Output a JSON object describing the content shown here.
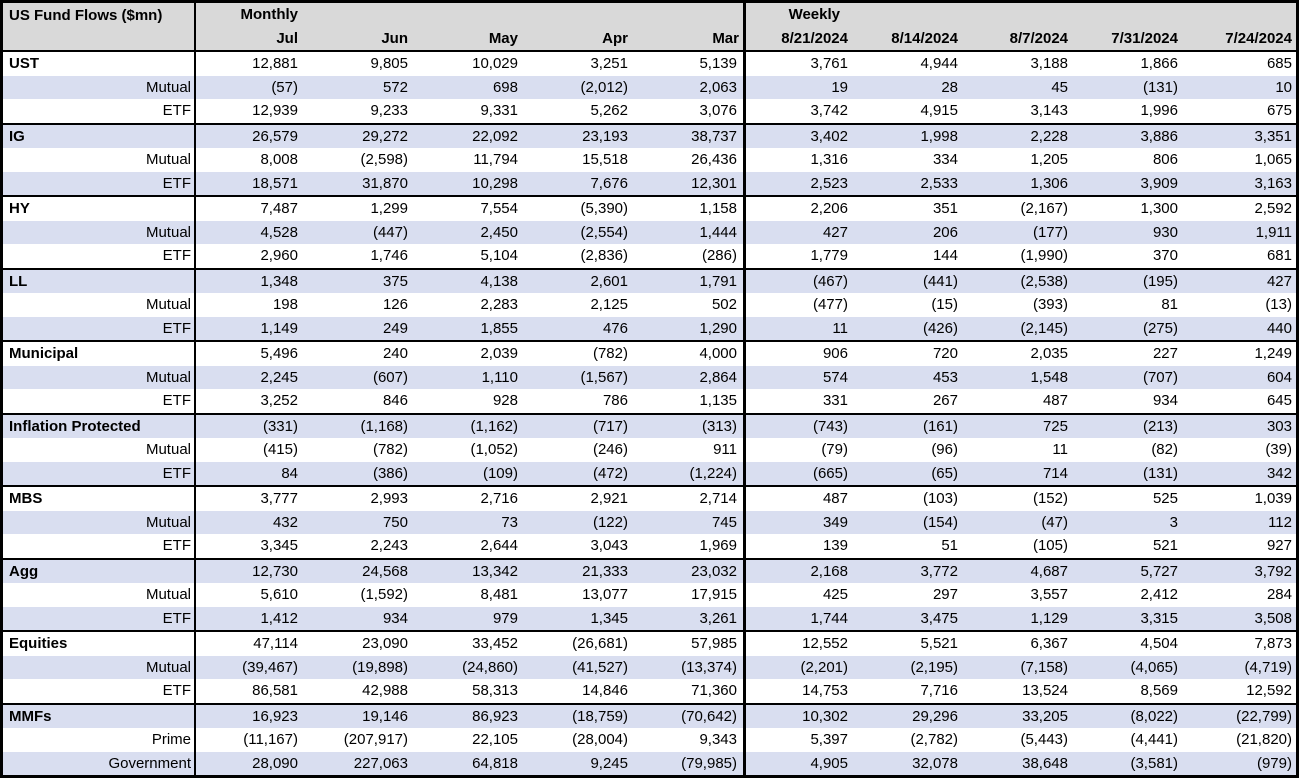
{
  "colors": {
    "header_bg": "#d9d9d9",
    "band_bg": "#d9def0",
    "border_color": "#000000",
    "text_color": "#000000"
  },
  "chart_data": {
    "type": "table",
    "title": "US Fund Flows ($mn)",
    "negative_format": "parentheses",
    "column_groups": [
      {
        "label": "Monthly",
        "columns": [
          "Jul",
          "Jun",
          "May",
          "Apr",
          "Mar"
        ]
      },
      {
        "label": "Weekly",
        "columns": [
          "8/21/2024",
          "8/14/2024",
          "8/7/2024",
          "7/31/2024",
          "7/24/2024"
        ]
      }
    ],
    "rows": [
      {
        "label": "UST",
        "group": true,
        "values": [
          12881,
          9805,
          10029,
          3251,
          5139,
          3761,
          4944,
          3188,
          1866,
          685
        ]
      },
      {
        "label": "Mutual",
        "group": false,
        "values": [
          -57,
          572,
          698,
          -2012,
          2063,
          19,
          28,
          45,
          -131,
          10
        ]
      },
      {
        "label": "ETF",
        "group": false,
        "values": [
          12939,
          9233,
          9331,
          5262,
          3076,
          3742,
          4915,
          3143,
          1996,
          675
        ]
      },
      {
        "label": "IG",
        "group": true,
        "values": [
          26579,
          29272,
          22092,
          23193,
          38737,
          3402,
          1998,
          2228,
          3886,
          3351
        ]
      },
      {
        "label": "Mutual",
        "group": false,
        "values": [
          8008,
          -2598,
          11794,
          15518,
          26436,
          1316,
          334,
          1205,
          806,
          1065
        ]
      },
      {
        "label": "ETF",
        "group": false,
        "values": [
          18571,
          31870,
          10298,
          7676,
          12301,
          2523,
          2533,
          1306,
          3909,
          3163
        ]
      },
      {
        "label": "HY",
        "group": true,
        "values": [
          7487,
          1299,
          7554,
          -5390,
          1158,
          2206,
          351,
          -2167,
          1300,
          2592
        ]
      },
      {
        "label": "Mutual",
        "group": false,
        "values": [
          4528,
          -447,
          2450,
          -2554,
          1444,
          427,
          206,
          -177,
          930,
          1911
        ]
      },
      {
        "label": "ETF",
        "group": false,
        "values": [
          2960,
          1746,
          5104,
          -2836,
          -286,
          1779,
          144,
          -1990,
          370,
          681
        ]
      },
      {
        "label": "LL",
        "group": true,
        "values": [
          1348,
          375,
          4138,
          2601,
          1791,
          -467,
          -441,
          -2538,
          -195,
          427
        ]
      },
      {
        "label": "Mutual",
        "group": false,
        "values": [
          198,
          126,
          2283,
          2125,
          502,
          -477,
          -15,
          -393,
          81,
          -13
        ]
      },
      {
        "label": "ETF",
        "group": false,
        "values": [
          1149,
          249,
          1855,
          476,
          1290,
          11,
          -426,
          -2145,
          -275,
          440
        ]
      },
      {
        "label": "Municipal",
        "group": true,
        "values": [
          5496,
          240,
          2039,
          -782,
          4000,
          906,
          720,
          2035,
          227,
          1249
        ]
      },
      {
        "label": "Mutual",
        "group": false,
        "values": [
          2245,
          -607,
          1110,
          -1567,
          2864,
          574,
          453,
          1548,
          -707,
          604
        ]
      },
      {
        "label": "ETF",
        "group": false,
        "values": [
          3252,
          846,
          928,
          786,
          1135,
          331,
          267,
          487,
          934,
          645
        ]
      },
      {
        "label": "Inflation Protected",
        "group": true,
        "values": [
          -331,
          -1168,
          -1162,
          -717,
          -313,
          -743,
          -161,
          725,
          -213,
          303
        ]
      },
      {
        "label": "Mutual",
        "group": false,
        "values": [
          -415,
          -782,
          -1052,
          -246,
          911,
          -79,
          -96,
          11,
          -82,
          -39
        ]
      },
      {
        "label": "ETF",
        "group": false,
        "values": [
          84,
          -386,
          -109,
          -472,
          -1224,
          -665,
          -65,
          714,
          -131,
          342
        ]
      },
      {
        "label": "MBS",
        "group": true,
        "values": [
          3777,
          2993,
          2716,
          2921,
          2714,
          487,
          -103,
          -152,
          525,
          1039
        ]
      },
      {
        "label": "Mutual",
        "group": false,
        "values": [
          432,
          750,
          73,
          -122,
          745,
          349,
          -154,
          -47,
          3,
          112
        ]
      },
      {
        "label": "ETF",
        "group": false,
        "values": [
          3345,
          2243,
          2644,
          3043,
          1969,
          139,
          51,
          -105,
          521,
          927
        ]
      },
      {
        "label": "Agg",
        "group": true,
        "values": [
          12730,
          24568,
          13342,
          21333,
          23032,
          2168,
          3772,
          4687,
          5727,
          3792
        ]
      },
      {
        "label": "Mutual",
        "group": false,
        "values": [
          5610,
          -1592,
          8481,
          13077,
          17915,
          425,
          297,
          3557,
          2412,
          284
        ]
      },
      {
        "label": "ETF",
        "group": false,
        "values": [
          1412,
          934,
          979,
          1345,
          3261,
          1744,
          3475,
          1129,
          3315,
          3508
        ]
      },
      {
        "label": "Equities",
        "group": true,
        "values": [
          47114,
          23090,
          33452,
          -26681,
          57985,
          12552,
          5521,
          6367,
          4504,
          7873
        ]
      },
      {
        "label": "Mutual",
        "group": false,
        "values": [
          -39467,
          -19898,
          -24860,
          -41527,
          -13374,
          -2201,
          -2195,
          -7158,
          -4065,
          -4719
        ]
      },
      {
        "label": "ETF",
        "group": false,
        "values": [
          86581,
          42988,
          58313,
          14846,
          71360,
          14753,
          7716,
          13524,
          8569,
          12592
        ]
      },
      {
        "label": "MMFs",
        "group": true,
        "values": [
          16923,
          19146,
          86923,
          -18759,
          -70642,
          10302,
          29296,
          33205,
          -8022,
          -22799
        ]
      },
      {
        "label": "Prime",
        "group": false,
        "values": [
          -11167,
          -207917,
          22105,
          -28004,
          9343,
          5397,
          -2782,
          -5443,
          -4441,
          -21820
        ]
      },
      {
        "label": "Government",
        "group": false,
        "values": [
          28090,
          227063,
          64818,
          9245,
          -79985,
          4905,
          32078,
          38648,
          -3581,
          -979
        ]
      }
    ]
  }
}
